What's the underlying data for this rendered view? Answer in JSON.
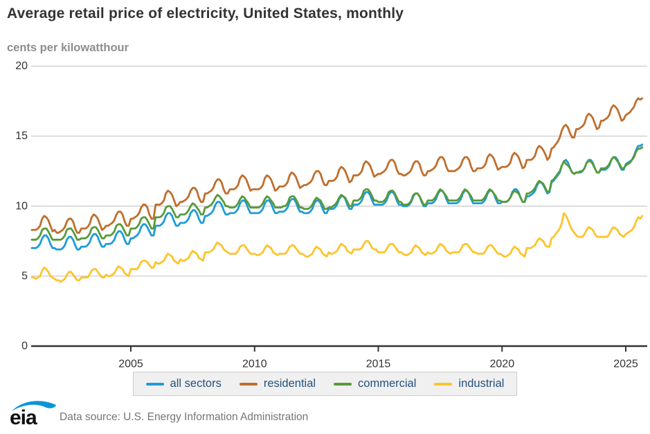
{
  "footer": {
    "logo_text": "eia",
    "source": "Data source: U.S. Energy Information Administration"
  },
  "colors": {
    "grid": "#cccccc",
    "axis": "#333333",
    "title": "#333333",
    "subtitle": "#8e8e8e",
    "legend_text": "#26527d",
    "legend_bg": "#f0f0f0",
    "source_text": "#757575",
    "logo_blue": "#0a96d6"
  },
  "chart_data": {
    "type": "line",
    "title": "Average retail price of electricity, United States, monthly",
    "ylabel": "cents per kilowatthour",
    "xlabel": "",
    "frequency": "monthly",
    "x_start": "2001-01",
    "x_end": "2025-09",
    "x_ticks": [
      2005,
      2010,
      2015,
      2020,
      2025
    ],
    "y_ticks": [
      0,
      5,
      10,
      15,
      20
    ],
    "ylim": [
      0,
      20
    ],
    "grid": true,
    "legend_position": "bottom",
    "series": [
      {
        "name": "all sectors",
        "color": "#1f9bd7",
        "values": [
          7.0,
          7.0,
          7.0,
          7.1,
          7.3,
          7.7,
          7.9,
          7.9,
          7.7,
          7.3,
          7.0,
          7.0,
          6.9,
          6.9,
          6.9,
          7.0,
          7.2,
          7.6,
          7.8,
          7.8,
          7.6,
          7.2,
          6.9,
          6.9,
          7.1,
          7.1,
          7.1,
          7.2,
          7.4,
          7.8,
          8.0,
          8.0,
          7.8,
          7.4,
          7.1,
          7.1,
          7.3,
          7.3,
          7.3,
          7.4,
          7.6,
          8.0,
          8.2,
          8.2,
          8.0,
          7.6,
          7.3,
          7.3,
          7.7,
          7.7,
          7.8,
          7.9,
          8.1,
          8.5,
          8.7,
          8.7,
          8.5,
          8.2,
          7.9,
          7.9,
          8.6,
          8.6,
          8.6,
          8.7,
          8.9,
          9.3,
          9.5,
          9.5,
          9.3,
          8.9,
          8.6,
          8.6,
          8.8,
          8.8,
          8.8,
          8.9,
          9.1,
          9.5,
          9.7,
          9.7,
          9.5,
          9.1,
          8.8,
          8.8,
          9.3,
          9.3,
          9.4,
          9.5,
          9.7,
          10.1,
          10.3,
          10.3,
          10.1,
          9.7,
          9.4,
          9.4,
          9.5,
          9.5,
          9.5,
          9.6,
          9.8,
          10.2,
          10.4,
          10.4,
          10.2,
          9.8,
          9.5,
          9.5,
          9.5,
          9.5,
          9.5,
          9.6,
          9.8,
          10.2,
          10.4,
          10.4,
          10.2,
          9.8,
          9.5,
          9.5,
          9.6,
          9.6,
          9.6,
          9.7,
          9.9,
          10.3,
          10.5,
          10.5,
          10.3,
          9.9,
          9.6,
          9.6,
          9.5,
          9.5,
          9.5,
          9.6,
          9.8,
          10.2,
          10.4,
          10.4,
          10.2,
          9.8,
          9.5,
          9.5,
          9.8,
          9.8,
          9.8,
          9.9,
          10.1,
          10.5,
          10.7,
          10.7,
          10.5,
          10.1,
          9.8,
          9.8,
          10.1,
          10.1,
          10.1,
          10.2,
          10.4,
          10.8,
          11.0,
          11.0,
          10.8,
          10.4,
          10.1,
          10.1,
          10.1,
          10.1,
          10.1,
          10.2,
          10.4,
          10.8,
          11.0,
          11.0,
          10.8,
          10.4,
          10.1,
          10.1,
          10.0,
          10.0,
          10.0,
          10.1,
          10.3,
          10.7,
          10.9,
          10.9,
          10.7,
          10.3,
          10.0,
          10.0,
          10.2,
          10.2,
          10.2,
          10.3,
          10.5,
          10.9,
          11.1,
          11.1,
          10.9,
          10.5,
          10.2,
          10.2,
          10.2,
          10.2,
          10.2,
          10.3,
          10.5,
          10.9,
          11.1,
          11.1,
          10.9,
          10.5,
          10.2,
          10.2,
          10.2,
          10.2,
          10.2,
          10.3,
          10.5,
          10.9,
          11.1,
          11.1,
          10.9,
          10.5,
          10.2,
          10.2,
          10.3,
          10.3,
          10.3,
          10.4,
          10.6,
          11.0,
          11.2,
          11.2,
          11.0,
          10.6,
          10.3,
          10.3,
          10.7,
          10.7,
          10.8,
          10.9,
          11.1,
          11.5,
          11.7,
          11.7,
          11.5,
          11.2,
          10.9,
          11.0,
          11.7,
          11.8,
          12.0,
          12.2,
          12.4,
          12.9,
          13.2,
          13.3,
          13.1,
          12.7,
          12.4,
          12.3,
          12.4,
          12.4,
          12.4,
          12.5,
          12.7,
          13.1,
          13.3,
          13.3,
          13.1,
          12.7,
          12.4,
          12.4,
          12.6,
          12.6,
          12.6,
          12.7,
          12.9,
          13.3,
          13.5,
          13.5,
          13.3,
          12.9,
          12.6,
          12.6,
          13.0,
          13.1,
          13.2,
          13.3,
          13.6,
          14.0,
          14.3,
          14.3,
          14.4
        ]
      },
      {
        "name": "residential",
        "color": "#bf6e2c",
        "values": [
          8.3,
          8.3,
          8.3,
          8.4,
          8.6,
          9.1,
          9.3,
          9.2,
          9.0,
          8.6,
          8.2,
          8.3,
          8.1,
          8.1,
          8.2,
          8.3,
          8.5,
          8.9,
          9.1,
          9.1,
          8.9,
          8.4,
          8.1,
          8.1,
          8.4,
          8.4,
          8.4,
          8.5,
          8.7,
          9.2,
          9.4,
          9.3,
          9.1,
          8.7,
          8.3,
          8.4,
          8.6,
          8.6,
          8.7,
          8.8,
          9.0,
          9.4,
          9.6,
          9.6,
          9.4,
          8.9,
          8.6,
          8.6,
          9.1,
          9.1,
          9.2,
          9.3,
          9.5,
          9.9,
          10.1,
          10.1,
          9.9,
          9.4,
          9.1,
          9.1,
          10.1,
          10.1,
          10.1,
          10.2,
          10.4,
          10.9,
          11.1,
          11.0,
          10.8,
          10.4,
          10.0,
          10.1,
          10.3,
          10.3,
          10.4,
          10.5,
          10.7,
          11.1,
          11.3,
          11.3,
          11.1,
          10.6,
          10.3,
          10.3,
          10.9,
          10.9,
          11.0,
          11.1,
          11.3,
          11.7,
          11.9,
          11.9,
          11.7,
          11.2,
          10.9,
          10.9,
          11.2,
          11.2,
          11.2,
          11.3,
          11.5,
          12.0,
          12.2,
          12.1,
          11.9,
          11.5,
          11.1,
          11.2,
          11.2,
          11.2,
          11.2,
          11.3,
          11.5,
          12.0,
          12.2,
          12.1,
          11.9,
          11.5,
          11.1,
          11.2,
          11.4,
          11.4,
          11.4,
          11.5,
          11.7,
          12.2,
          12.4,
          12.3,
          12.1,
          11.7,
          11.3,
          11.4,
          11.5,
          11.5,
          11.6,
          11.7,
          11.9,
          12.3,
          12.5,
          12.5,
          12.3,
          11.8,
          11.5,
          11.5,
          11.8,
          11.8,
          11.8,
          11.9,
          12.1,
          12.6,
          12.8,
          12.7,
          12.5,
          12.1,
          11.7,
          11.8,
          12.2,
          12.2,
          12.2,
          12.3,
          12.5,
          13.0,
          13.2,
          13.1,
          12.9,
          12.5,
          12.1,
          12.2,
          12.3,
          12.3,
          12.4,
          12.5,
          12.7,
          13.1,
          13.3,
          13.3,
          13.1,
          12.6,
          12.3,
          12.3,
          12.2,
          12.2,
          12.3,
          12.4,
          12.6,
          13.0,
          13.2,
          13.2,
          13.0,
          12.5,
          12.2,
          12.2,
          12.5,
          12.5,
          12.6,
          12.7,
          12.9,
          13.3,
          13.5,
          13.5,
          13.3,
          12.8,
          12.5,
          12.5,
          12.5,
          12.5,
          12.6,
          12.7,
          12.9,
          13.3,
          13.5,
          13.5,
          13.3,
          12.8,
          12.5,
          12.5,
          12.7,
          12.7,
          12.7,
          12.8,
          13.0,
          13.5,
          13.7,
          13.6,
          13.4,
          13.0,
          12.6,
          12.7,
          12.8,
          12.8,
          12.8,
          12.9,
          13.1,
          13.6,
          13.8,
          13.7,
          13.5,
          13.1,
          12.7,
          12.8,
          13.3,
          13.3,
          13.3,
          13.4,
          13.6,
          14.1,
          14.3,
          14.2,
          14.0,
          13.7,
          13.3,
          13.5,
          14.1,
          14.2,
          14.4,
          14.6,
          14.9,
          15.4,
          15.7,
          15.8,
          15.6,
          15.2,
          14.9,
          14.9,
          15.5,
          15.5,
          15.6,
          15.7,
          15.9,
          16.4,
          16.6,
          16.5,
          16.3,
          15.9,
          15.5,
          15.6,
          16.1,
          16.1,
          16.2,
          16.3,
          16.5,
          17.0,
          17.2,
          17.1,
          16.9,
          16.5,
          16.1,
          16.2,
          16.5,
          16.6,
          16.7,
          16.9,
          17.1,
          17.5,
          17.7,
          17.6,
          17.7
        ]
      },
      {
        "name": "commercial",
        "color": "#579a3a",
        "values": [
          7.6,
          7.6,
          7.6,
          7.7,
          7.9,
          8.3,
          8.4,
          8.4,
          8.2,
          7.9,
          7.6,
          7.6,
          7.6,
          7.6,
          7.6,
          7.7,
          7.9,
          8.3,
          8.4,
          8.4,
          8.2,
          7.9,
          7.6,
          7.6,
          7.7,
          7.7,
          7.7,
          7.8,
          8.0,
          8.4,
          8.5,
          8.5,
          8.3,
          8.0,
          7.7,
          7.7,
          7.9,
          7.9,
          7.9,
          8.0,
          8.2,
          8.6,
          8.7,
          8.7,
          8.5,
          8.2,
          7.9,
          7.9,
          8.4,
          8.4,
          8.4,
          8.5,
          8.7,
          9.1,
          9.2,
          9.2,
          9.0,
          8.7,
          8.4,
          8.4,
          9.2,
          9.2,
          9.2,
          9.3,
          9.5,
          9.9,
          10.0,
          10.0,
          9.8,
          9.5,
          9.2,
          9.2,
          9.4,
          9.4,
          9.4,
          9.5,
          9.7,
          10.0,
          10.2,
          10.1,
          9.9,
          9.7,
          9.4,
          9.4,
          9.9,
          9.9,
          10.0,
          10.1,
          10.3,
          10.6,
          10.8,
          10.7,
          10.5,
          10.3,
          10.0,
          10.0,
          9.9,
          9.9,
          9.9,
          10.0,
          10.2,
          10.5,
          10.7,
          10.6,
          10.4,
          10.2,
          9.9,
          9.9,
          9.9,
          9.9,
          9.9,
          10.0,
          10.2,
          10.5,
          10.7,
          10.6,
          10.4,
          10.2,
          9.9,
          9.9,
          9.9,
          9.9,
          10.0,
          10.0,
          10.2,
          10.6,
          10.7,
          10.7,
          10.5,
          10.2,
          9.9,
          9.9,
          9.8,
          9.8,
          9.8,
          9.9,
          10.1,
          10.4,
          10.6,
          10.5,
          10.4,
          10.1,
          9.8,
          9.8,
          9.9,
          9.9,
          10.0,
          10.1,
          10.3,
          10.6,
          10.8,
          10.7,
          10.6,
          10.3,
          10.0,
          10.0,
          10.4,
          10.4,
          10.4,
          10.5,
          10.7,
          11.1,
          11.2,
          11.2,
          11.0,
          10.7,
          10.4,
          10.4,
          10.3,
          10.3,
          10.3,
          10.4,
          10.6,
          11.0,
          11.1,
          11.1,
          10.9,
          10.6,
          10.3,
          10.3,
          10.1,
          10.1,
          10.1,
          10.2,
          10.4,
          10.8,
          10.9,
          10.9,
          10.7,
          10.4,
          10.1,
          10.1,
          10.4,
          10.4,
          10.4,
          10.5,
          10.7,
          11.0,
          11.2,
          11.1,
          10.9,
          10.7,
          10.4,
          10.4,
          10.4,
          10.4,
          10.4,
          10.5,
          10.7,
          11.0,
          11.2,
          11.1,
          10.9,
          10.7,
          10.4,
          10.4,
          10.4,
          10.4,
          10.4,
          10.5,
          10.7,
          11.0,
          11.2,
          11.1,
          10.9,
          10.7,
          10.4,
          10.4,
          10.3,
          10.3,
          10.3,
          10.4,
          10.6,
          10.9,
          11.1,
          11.0,
          10.9,
          10.6,
          10.3,
          10.3,
          10.9,
          10.9,
          11.0,
          11.1,
          11.3,
          11.6,
          11.8,
          11.7,
          11.6,
          11.3,
          11.0,
          11.1,
          11.8,
          11.9,
          12.1,
          12.3,
          12.5,
          12.9,
          13.2,
          13.0,
          12.9,
          12.7,
          12.4,
          12.3,
          12.4,
          12.4,
          12.5,
          12.5,
          12.7,
          13.1,
          13.2,
          13.2,
          13.0,
          12.7,
          12.4,
          12.4,
          12.7,
          12.7,
          12.7,
          12.8,
          13.0,
          13.3,
          13.5,
          13.4,
          13.2,
          13.0,
          12.7,
          12.7,
          12.9,
          13.0,
          13.1,
          13.3,
          13.5,
          13.9,
          14.1,
          14.1,
          14.2
        ]
      },
      {
        "name": "industrial",
        "color": "#fdc42a",
        "values": [
          4.9,
          4.9,
          4.8,
          4.9,
          5.0,
          5.4,
          5.6,
          5.5,
          5.3,
          5.0,
          4.9,
          4.8,
          4.7,
          4.7,
          4.6,
          4.7,
          4.8,
          5.1,
          5.3,
          5.3,
          5.1,
          4.9,
          4.7,
          4.7,
          4.9,
          4.9,
          4.9,
          4.9,
          5.1,
          5.4,
          5.5,
          5.5,
          5.3,
          5.1,
          4.9,
          4.9,
          5.1,
          5.0,
          5.0,
          5.1,
          5.2,
          5.5,
          5.7,
          5.6,
          5.5,
          5.2,
          5.1,
          5.0,
          5.5,
          5.5,
          5.5,
          5.5,
          5.7,
          6.0,
          6.1,
          6.1,
          6.0,
          5.8,
          5.6,
          5.6,
          6.0,
          5.9,
          5.9,
          6.0,
          6.1,
          6.4,
          6.6,
          6.5,
          6.4,
          6.1,
          6.0,
          5.9,
          6.2,
          6.1,
          6.1,
          6.2,
          6.3,
          6.6,
          6.8,
          6.7,
          6.6,
          6.3,
          6.2,
          6.1,
          6.7,
          6.7,
          6.7,
          6.8,
          6.9,
          7.2,
          7.4,
          7.3,
          7.2,
          6.9,
          6.8,
          6.7,
          6.6,
          6.6,
          6.6,
          6.6,
          6.8,
          7.1,
          7.2,
          7.2,
          7.0,
          6.8,
          6.6,
          6.6,
          6.6,
          6.5,
          6.5,
          6.6,
          6.7,
          7.0,
          7.2,
          7.1,
          7.0,
          6.7,
          6.6,
          6.5,
          6.6,
          6.6,
          6.6,
          6.6,
          6.8,
          7.1,
          7.2,
          7.2,
          7.0,
          6.8,
          6.6,
          6.6,
          6.5,
          6.4,
          6.4,
          6.5,
          6.6,
          6.9,
          7.1,
          7.0,
          6.9,
          6.6,
          6.5,
          6.4,
          6.7,
          6.6,
          6.6,
          6.7,
          6.8,
          7.1,
          7.3,
          7.2,
          7.1,
          6.8,
          6.7,
          6.6,
          6.9,
          6.9,
          6.9,
          6.9,
          7.0,
          7.3,
          7.5,
          7.5,
          7.3,
          7.0,
          6.9,
          6.9,
          6.7,
          6.7,
          6.7,
          6.7,
          6.9,
          7.2,
          7.3,
          7.3,
          7.1,
          6.9,
          6.7,
          6.7,
          6.6,
          6.5,
          6.5,
          6.6,
          6.7,
          7.0,
          7.2,
          7.1,
          7.0,
          6.7,
          6.6,
          6.5,
          6.7,
          6.6,
          6.6,
          6.7,
          6.8,
          7.1,
          7.3,
          7.2,
          7.1,
          6.8,
          6.7,
          6.6,
          6.7,
          6.7,
          6.7,
          6.7,
          6.9,
          7.2,
          7.3,
          7.3,
          7.1,
          6.9,
          6.7,
          6.7,
          6.6,
          6.6,
          6.6,
          6.6,
          6.8,
          7.1,
          7.2,
          7.2,
          7.0,
          6.8,
          6.6,
          6.6,
          6.5,
          6.4,
          6.4,
          6.5,
          6.6,
          6.9,
          7.1,
          7.0,
          6.9,
          6.6,
          6.5,
          6.4,
          7.0,
          7.0,
          7.0,
          7.1,
          7.2,
          7.5,
          7.7,
          7.6,
          7.5,
          7.2,
          7.1,
          7.1,
          7.7,
          7.8,
          8.0,
          8.2,
          8.4,
          8.8,
          9.5,
          9.3,
          9.0,
          8.6,
          8.3,
          8.1,
          7.9,
          7.8,
          7.8,
          7.8,
          8.0,
          8.3,
          8.5,
          8.4,
          8.3,
          8.0,
          7.8,
          7.8,
          7.8,
          7.8,
          7.8,
          7.8,
          8.0,
          8.3,
          8.5,
          8.4,
          8.3,
          8.0,
          7.9,
          7.8,
          8.0,
          8.1,
          8.2,
          8.3,
          8.5,
          8.9,
          9.2,
          9.1,
          9.3
        ]
      }
    ]
  }
}
